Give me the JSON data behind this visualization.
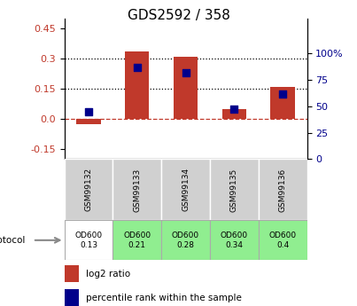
{
  "title": "GDS2592 / 358",
  "samples": [
    "GSM99132",
    "GSM99133",
    "GSM99134",
    "GSM99135",
    "GSM99136"
  ],
  "log2_ratio": [
    -0.025,
    0.335,
    0.31,
    0.05,
    0.16
  ],
  "percentile_rank": [
    45,
    87,
    82,
    47,
    62
  ],
  "protocol_labels": [
    "OD600\n0.13",
    "OD600\n0.21",
    "OD600\n0.28",
    "OD600\n0.34",
    "OD600\n0.4"
  ],
  "protocol_colors": [
    "#ffffff",
    "#90ee90",
    "#90ee90",
    "#90ee90",
    "#90ee90"
  ],
  "ylim_left": [
    -0.2,
    0.5
  ],
  "ylim_right": [
    0,
    133.33
  ],
  "yticks_left": [
    -0.15,
    0.0,
    0.15,
    0.3,
    0.45
  ],
  "yticks_right": [
    0,
    25,
    50,
    75,
    100
  ],
  "hlines": [
    0.15,
    0.3
  ],
  "bar_color": "#c0392b",
  "dot_color": "#00008b",
  "zero_line_color": "#c0392b",
  "background_color": "#ffffff",
  "gray_cell": "#d0d0d0",
  "legend_items": [
    "log2 ratio",
    "percentile rank within the sample"
  ],
  "bar_width": 0.5
}
